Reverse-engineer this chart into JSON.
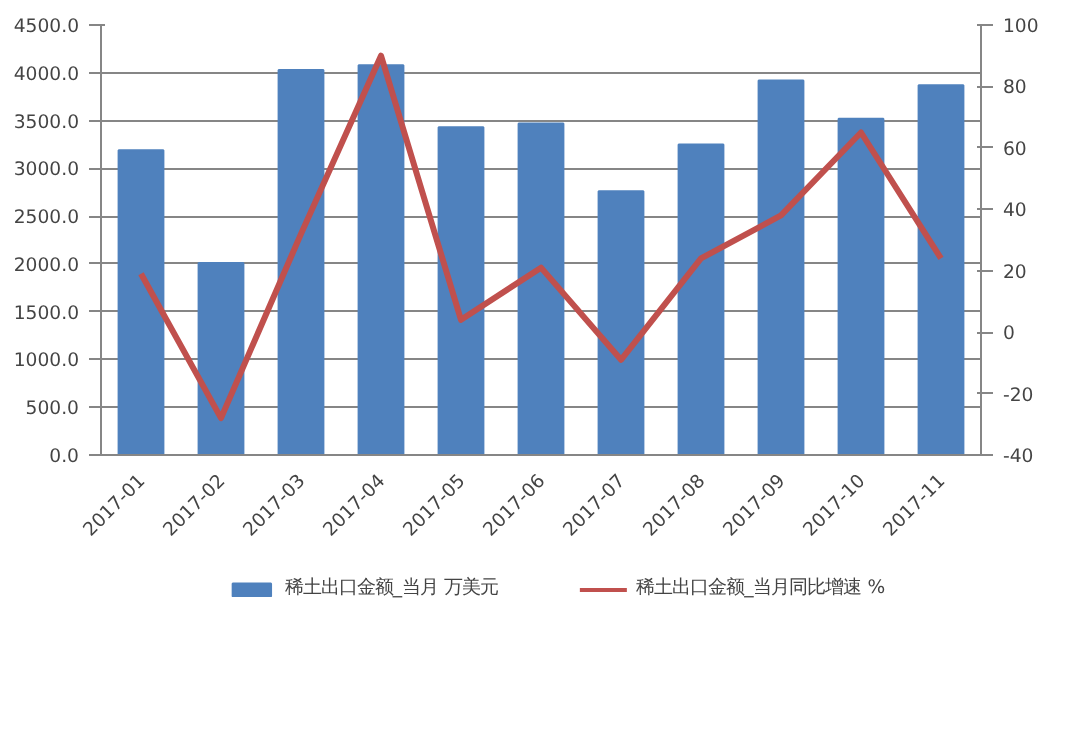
{
  "chart_data": {
    "type": "bar",
    "categories": [
      "2017-01",
      "2017-02",
      "2017-03",
      "2017-04",
      "2017-05",
      "2017-06",
      "2017-07",
      "2017-08",
      "2017-09",
      "2017-10",
      "2017-11"
    ],
    "series": [
      {
        "name": "稀土出口金额_当月 万美元",
        "color": "#4f81bd",
        "values": [
          3190,
          2010,
          4030,
          4080,
          3430,
          3470,
          2760,
          3250,
          3920,
          3520,
          3870
        ]
      },
      {
        "name": "稀土出口金额_当月同比增速 %",
        "type": "line",
        "axis": "y2",
        "color": "#c0504d",
        "values": [
          19,
          -28,
          32,
          90,
          4,
          21,
          -9,
          24,
          38,
          65,
          24
        ]
      }
    ],
    "ylim": [
      0,
      4500
    ],
    "yticks": [
      {
        "value": 0,
        "label": "0.0"
      },
      {
        "value": 500,
        "label": "500.0"
      },
      {
        "value": 1000,
        "label": "1000.0"
      },
      {
        "value": 1500,
        "label": "1500.0"
      },
      {
        "value": 2000,
        "label": "2000.0"
      },
      {
        "value": 2500,
        "label": "2500.0"
      },
      {
        "value": 3000,
        "label": "3000.0"
      },
      {
        "value": 3500,
        "label": "3500.0"
      },
      {
        "value": 4000,
        "label": "4000.0"
      },
      {
        "value": 4500,
        "label": "4500.0"
      }
    ],
    "y2lim": [
      -40,
      100
    ],
    "y2ticks": [
      -40,
      -20,
      0,
      20,
      40,
      60,
      80,
      100
    ],
    "grid": "y",
    "legend": "bottom",
    "marker": "none",
    "line_style": "solid"
  }
}
